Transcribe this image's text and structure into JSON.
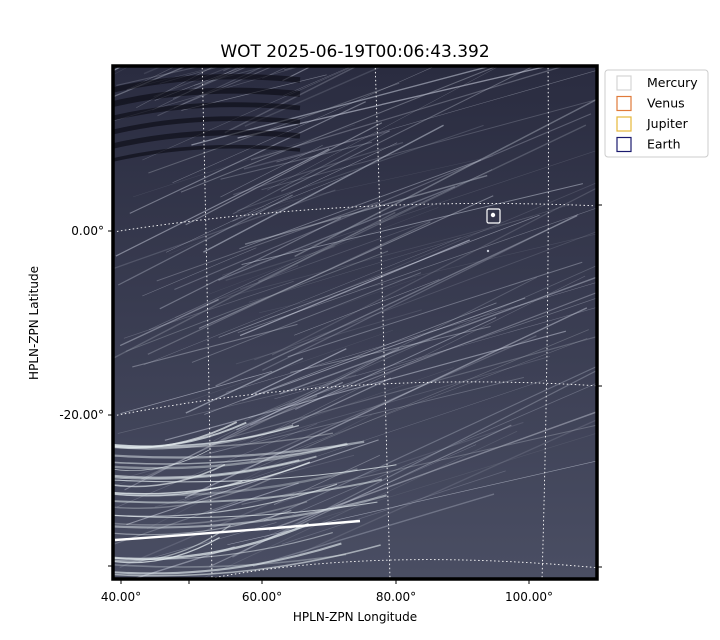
{
  "chart_data": {
    "type": "image",
    "title": "WOT 2025-06-19T00:06:43.392",
    "xlabel": "HPLN-ZPN Longitude",
    "ylabel": "HPLN-ZPN Latitude",
    "x_tick_labels": [
      "40.00°",
      "60.00°",
      "80.00°",
      "100.00°"
    ],
    "y_tick_labels": [
      "0.00°",
      "-20.00°"
    ],
    "grid": true,
    "grid_style": "dotted",
    "image_colormap": [
      "#0e0f1e",
      "#3f4257",
      "#8f9aae",
      "#dfe8ee"
    ],
    "legend": {
      "placement": "outside-top-right",
      "entries": [
        {
          "name": "Mercury",
          "color": "#d4d4d4"
        },
        {
          "name": "Venus",
          "color": "#e07a3a"
        },
        {
          "name": "Jupiter",
          "color": "#e6b73a"
        },
        {
          "name": "Earth",
          "color": "#1a1a6e"
        }
      ]
    },
    "markers": [
      {
        "name": "Mercury",
        "color": "#ffffff"
      }
    ]
  }
}
